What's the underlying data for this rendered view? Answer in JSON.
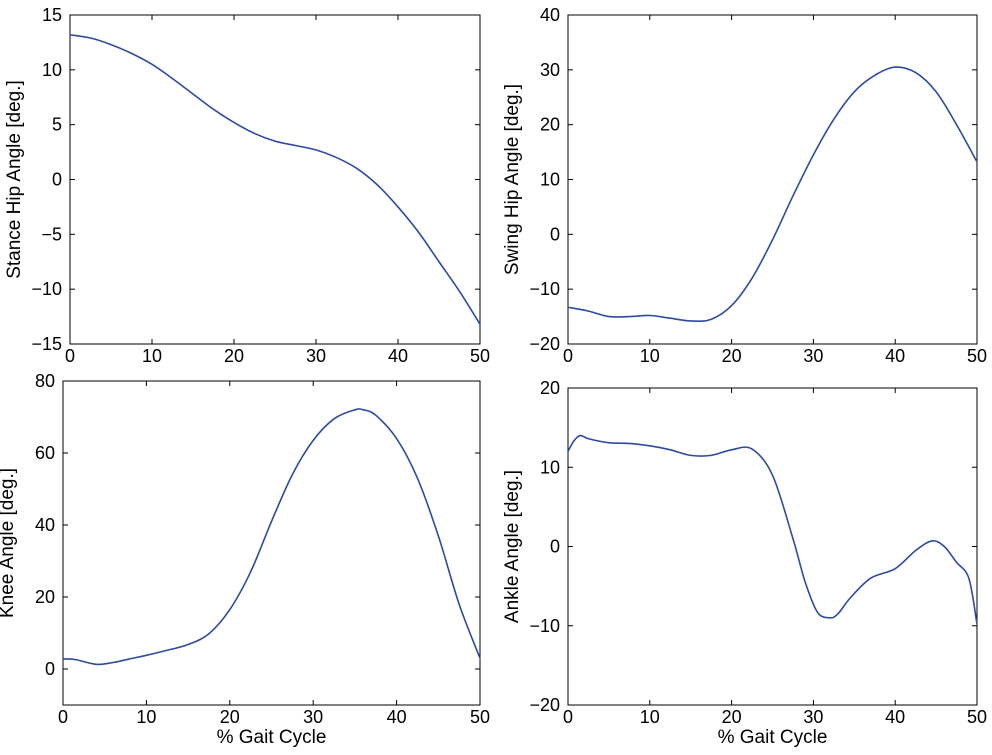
{
  "chart_data": [
    {
      "id": "stance-hip",
      "type": "line",
      "title": "",
      "xlabel": "",
      "ylabel": "Stance Hip Angle [deg.]",
      "xlim": [
        0,
        50
      ],
      "ylim": [
        -15,
        15
      ],
      "xticks": [
        0,
        10,
        20,
        30,
        40,
        50
      ],
      "yticks": [
        -15,
        -10,
        -5,
        0,
        5,
        10,
        15
      ],
      "grid": false,
      "color": "#2c4ba1",
      "series": [
        {
          "x": [
            0,
            2.5,
            5,
            7.5,
            10,
            12.5,
            15,
            17.5,
            20,
            22.5,
            25,
            27.5,
            30,
            32.5,
            35,
            37.5,
            40,
            42.5,
            45,
            47.5,
            50
          ],
          "y": [
            13.2,
            12.9,
            12.3,
            11.5,
            10.5,
            9.2,
            7.8,
            6.4,
            5.2,
            4.2,
            3.5,
            3.1,
            2.7,
            2.0,
            1.0,
            -0.5,
            -2.5,
            -4.8,
            -7.5,
            -10.2,
            -13.2
          ]
        }
      ]
    },
    {
      "id": "swing-hip",
      "type": "line",
      "title": "",
      "xlabel": "",
      "ylabel": "Swing Hip Angle [deg.]",
      "xlim": [
        0,
        50
      ],
      "ylim": [
        -20,
        40
      ],
      "xticks": [
        0,
        10,
        20,
        30,
        40,
        50
      ],
      "yticks": [
        -20,
        -10,
        0,
        10,
        20,
        30,
        40
      ],
      "grid": false,
      "color": "#2c4ba1",
      "series": [
        {
          "x": [
            0,
            2.5,
            5,
            7.5,
            10,
            12.5,
            15,
            17.5,
            20,
            22.5,
            25,
            27.5,
            30,
            32.5,
            35,
            37.5,
            40,
            42.5,
            45,
            47.5,
            50
          ],
          "y": [
            -13.3,
            -14.0,
            -15.0,
            -15.0,
            -14.8,
            -15.3,
            -15.8,
            -15.5,
            -13.0,
            -8.0,
            -1.0,
            7.0,
            14.5,
            21.0,
            26.0,
            29.0,
            30.5,
            29.5,
            26.0,
            20.0,
            13.2
          ]
        }
      ]
    },
    {
      "id": "knee",
      "type": "line",
      "title": "",
      "xlabel": "% Gait Cycle",
      "ylabel": "Knee Angle [deg.]",
      "xlim": [
        0,
        50
      ],
      "ylim": [
        -10,
        80
      ],
      "xticks": [
        0,
        10,
        20,
        30,
        40,
        50
      ],
      "yticks": [
        0,
        20,
        40,
        60,
        80
      ],
      "grid": false,
      "color": "#2c4ba1",
      "series": [
        {
          "x": [
            0,
            1.5,
            4,
            6,
            8,
            10,
            12.5,
            15,
            17.5,
            20,
            22.5,
            25,
            27.5,
            30,
            32.5,
            35,
            36,
            37.5,
            40,
            42.5,
            45,
            47.5,
            50
          ],
          "y": [
            2.8,
            2.6,
            1.3,
            1.8,
            2.8,
            3.8,
            5.2,
            6.8,
            9.8,
            16.5,
            27.0,
            41.0,
            54.0,
            63.5,
            69.5,
            72.0,
            72.0,
            70.5,
            64.0,
            53.0,
            37.0,
            18.0,
            3.0
          ]
        }
      ]
    },
    {
      "id": "ankle",
      "type": "line",
      "title": "",
      "xlabel": "% Gait Cycle",
      "ylabel": "Ankle Angle [deg.]",
      "xlim": [
        0,
        50
      ],
      "ylim": [
        -20,
        20
      ],
      "xticks": [
        0,
        10,
        20,
        30,
        40,
        50
      ],
      "yticks": [
        -20,
        -10,
        0,
        10,
        20
      ],
      "grid": false,
      "color": "#2c4ba1",
      "series": [
        {
          "x": [
            0,
            0.7,
            1.5,
            2.5,
            5,
            7.5,
            10,
            12.5,
            15,
            17.5,
            20,
            22.5,
            25,
            27.5,
            29,
            30.5,
            32,
            33,
            34.5,
            37,
            40,
            42.5,
            44.5,
            46,
            47.5,
            49,
            50
          ],
          "y": [
            12.0,
            13.3,
            14.0,
            13.6,
            13.1,
            13.0,
            12.7,
            12.2,
            11.5,
            11.5,
            12.2,
            12.3,
            9.0,
            1.0,
            -4.5,
            -8.3,
            -9.0,
            -8.5,
            -6.5,
            -4.0,
            -2.8,
            -0.5,
            0.7,
            0.0,
            -2.0,
            -4.0,
            -9.8
          ]
        }
      ]
    }
  ]
}
